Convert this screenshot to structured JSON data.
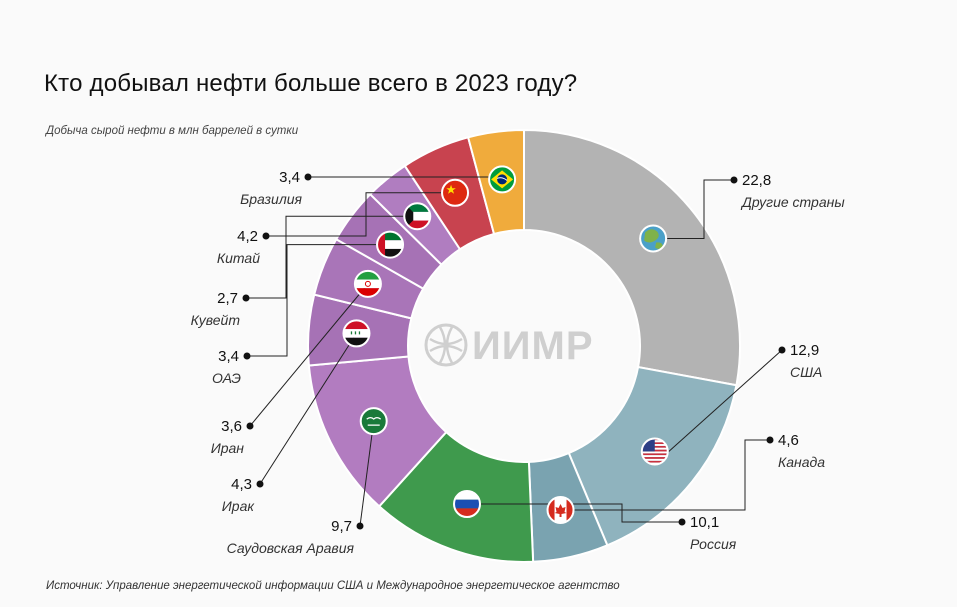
{
  "title": "Кто добывал нефти больше всего в 2023 году?",
  "subtitle": "Добыча сырой нефти в млн баррелей в сутки",
  "source": "Источник: Управление энергетической информации США и Международное энергетическое агентство",
  "watermark": {
    "text": "ИИМР"
  },
  "chart_data": {
    "type": "pie",
    "variant": "donut",
    "title": "Кто добывал нефти больше всего в 2023 году?",
    "subtitle": "Добыча сырой нефти в млн баррелей в сутки",
    "start": "12 o'clock",
    "direction": "clockwise",
    "slices": [
      {
        "name": "Другие страны",
        "value": 22.8,
        "value_label": "22,8",
        "color": "#b3b3b3",
        "icon": "globe-icon",
        "label_side": "right"
      },
      {
        "name": "США",
        "value": 12.9,
        "value_label": "12,9",
        "color": "#8fb3be",
        "icon": "usa-flag-icon",
        "label_side": "right"
      },
      {
        "name": "Канада",
        "value": 4.6,
        "value_label": "4,6",
        "color": "#7aa3b0",
        "icon": "canada-flag-icon",
        "label_side": "right"
      },
      {
        "name": "Россия",
        "value": 10.1,
        "value_label": "10,1",
        "color": "#3f9a4d",
        "icon": "russia-flag-icon",
        "label_side": "right"
      },
      {
        "name": "Саудовская Аравия",
        "value": 9.7,
        "value_label": "9,7",
        "color": "#b27cc0",
        "icon": "saudi-flag-icon",
        "label_side": "left"
      },
      {
        "name": "Ирак",
        "value": 4.3,
        "value_label": "4,3",
        "color": "#a672b5",
        "icon": "iraq-flag-icon",
        "label_side": "left"
      },
      {
        "name": "Иран",
        "value": 3.6,
        "value_label": "3,6",
        "color": "#a975b8",
        "icon": "iran-flag-icon",
        "label_side": "left"
      },
      {
        "name": "ОАЭ",
        "value": 3.4,
        "value_label": "3,4",
        "color": "#a672b5",
        "icon": "uae-flag-icon",
        "label_side": "left"
      },
      {
        "name": "Кувейт",
        "value": 2.7,
        "value_label": "2,7",
        "color": "#b07dc0",
        "icon": "kuwait-flag-icon",
        "label_side": "left"
      },
      {
        "name": "Китай",
        "value": 4.2,
        "value_label": "4,2",
        "color": "#c8434f",
        "icon": "china-flag-icon",
        "label_side": "left"
      },
      {
        "name": "Бразилия",
        "value": 3.4,
        "value_label": "3,4",
        "color": "#f0ab3c",
        "icon": "brazil-flag-icon",
        "label_side": "left"
      }
    ]
  }
}
